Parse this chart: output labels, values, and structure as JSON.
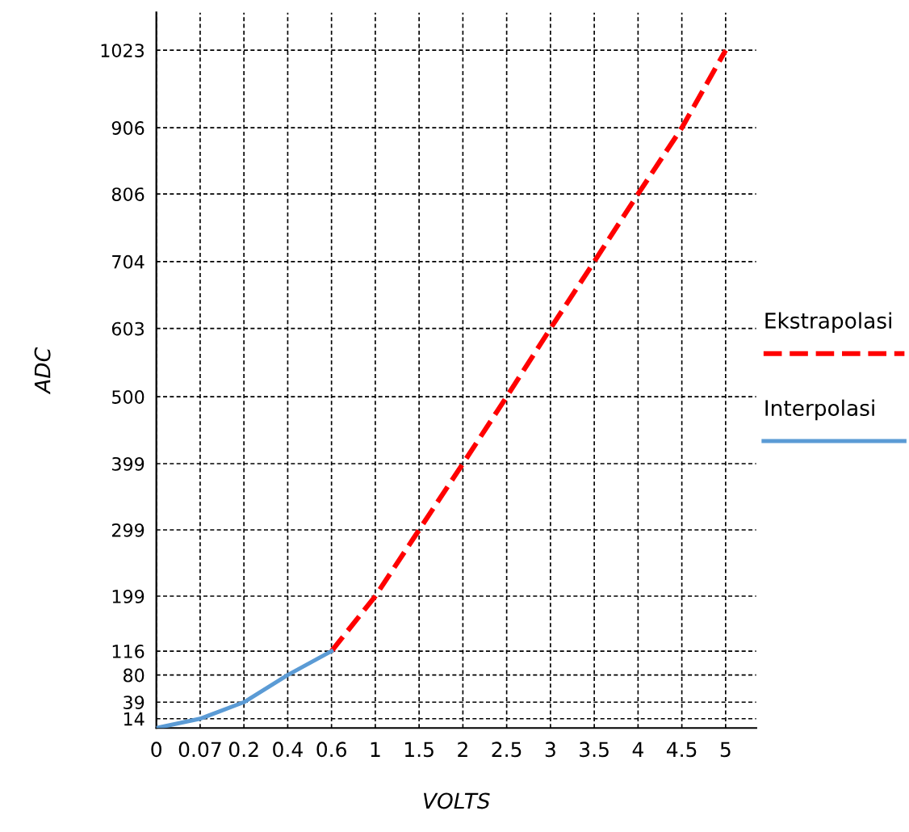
{
  "chart_data": {
    "type": "line",
    "xlabel": "VOLTS",
    "ylabel": "ADC",
    "categories": [
      "0",
      "0.07",
      "0.2",
      "0.4",
      "0.6",
      "1",
      "1.5",
      "2",
      "2.5",
      "3",
      "3.5",
      "4",
      "4.5",
      "5"
    ],
    "series": [
      {
        "name": "Ekstrapolasi",
        "color": "#ff0000",
        "line_style": "dashed",
        "values": [
          null,
          null,
          null,
          null,
          116,
          199,
          299,
          399,
          500,
          603,
          704,
          806,
          906,
          1023
        ]
      },
      {
        "name": "Interpolasi",
        "color": "#5b9bd5",
        "line_style": "solid",
        "values": [
          0,
          14,
          39,
          80,
          116,
          null,
          null,
          null,
          null,
          null,
          null,
          null,
          null,
          null
        ]
      }
    ],
    "ylim": [
      0,
      1080
    ],
    "yticks": [
      14,
      39,
      80,
      116,
      199,
      299,
      399,
      500,
      603,
      704,
      806,
      906,
      1023
    ],
    "grid": true,
    "legend": "right",
    "marker": "none"
  }
}
